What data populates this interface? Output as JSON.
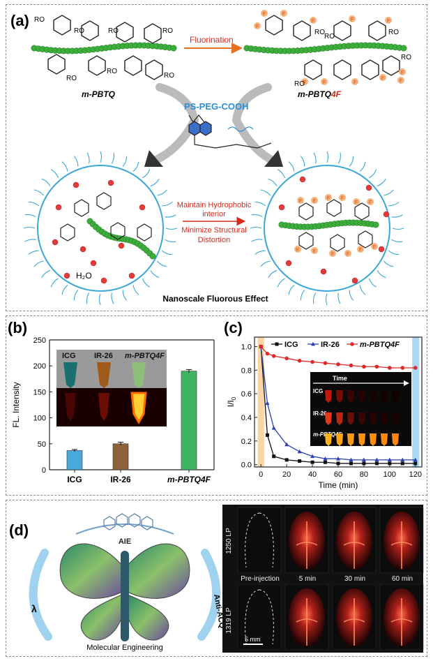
{
  "panel_a": {
    "label": "(a)",
    "left_polymer": "m-PBTQ",
    "right_polymer_prefix": "m-PBTQ",
    "right_polymer_suffix": "4F",
    "arrow_label": "Fluorination",
    "encapsulant": "PS-PEG-COOH",
    "substituent": "RO",
    "fluorine": "F",
    "water": "H₂O",
    "mid_text_1": "Maintain Hydrophobic",
    "mid_text_2": "interior",
    "mid_text_3": "Minimize Structural",
    "mid_text_4": "Distortion",
    "bottom_caption": "Nanoscale Fluorous Effect",
    "colors": {
      "chain": "#3cae3c",
      "fluorine": "#f5b27a",
      "fluorine_text": "#e0411b",
      "arrow": "#e8711f",
      "micelle": "#3aa7d8",
      "water": "#e03a3a",
      "label_red": "#d42a1f",
      "peg_blue": "#2a8fd6"
    }
  },
  "panel_b": {
    "label": "(b)",
    "chart_data": {
      "type": "bar",
      "categories": [
        "ICG",
        "IR-26",
        "m-PBTQ4F"
      ],
      "values": [
        37,
        50,
        190
      ],
      "errors": [
        2,
        3,
        3
      ],
      "ylabel": "FL. Intensity",
      "ylim": [
        0,
        250
      ],
      "yticks": [
        "0",
        "50",
        "100",
        "150",
        "200",
        "250"
      ],
      "colors": [
        "#4aa9dc",
        "#8b6239",
        "#3fb564"
      ]
    },
    "inset_labels": [
      "ICG",
      "IR-26",
      "m-PBTQ4F"
    ]
  },
  "panel_c": {
    "label": "(c)",
    "chart_data": {
      "type": "line",
      "xlabel": "Time (min)",
      "ylabel": "I/I0",
      "xlim": [
        -5,
        125
      ],
      "ylim": [
        -0.02,
        1.08
      ],
      "xticks": [
        "0",
        "20",
        "40",
        "60",
        "80",
        "100",
        "120"
      ],
      "yticks": [
        "0.0",
        "0.2",
        "0.4",
        "0.6",
        "0.8",
        "1.0"
      ],
      "series": [
        {
          "name": "ICG",
          "color": "#111111",
          "x": [
            0,
            5,
            10,
            20,
            30,
            40,
            50,
            60,
            70,
            80,
            90,
            100,
            110,
            120
          ],
          "y": [
            1.0,
            0.25,
            0.07,
            0.04,
            0.03,
            0.02,
            0.02,
            0.01,
            0.01,
            0.01,
            0.01,
            0.01,
            0.01,
            0.01
          ]
        },
        {
          "name": "IR-26",
          "color": "#2a3fb5",
          "x": [
            0,
            5,
            10,
            20,
            30,
            40,
            50,
            60,
            70,
            80,
            90,
            100,
            110,
            120
          ],
          "y": [
            1.0,
            0.52,
            0.31,
            0.17,
            0.11,
            0.07,
            0.05,
            0.05,
            0.04,
            0.04,
            0.04,
            0.04,
            0.04,
            0.04
          ]
        },
        {
          "name": "m-PBTQ4F",
          "color": "#e02a2a",
          "x": [
            0,
            5,
            10,
            20,
            30,
            40,
            50,
            60,
            70,
            80,
            90,
            100,
            110,
            120
          ],
          "y": [
            1.0,
            0.94,
            0.92,
            0.9,
            0.88,
            0.87,
            0.86,
            0.85,
            0.84,
            0.83,
            0.83,
            0.82,
            0.82,
            0.82
          ]
        }
      ]
    },
    "inset_title": "Time",
    "inset_rows": [
      "ICG",
      "IR-26",
      "m-PBTQ4F"
    ]
  },
  "panel_d": {
    "label": "(d)",
    "butterfly_top": "AIE",
    "butterfly_left": "λ",
    "butterfly_right": "Anti-ACQ",
    "butterfly_caption": "Molecular Engineering",
    "row_labels": [
      "1250 LP",
      "1319 LP"
    ],
    "col_labels": [
      "Pre-injection",
      "5 min",
      "30 min",
      "60 min"
    ],
    "scale_bar": "5 mm"
  }
}
